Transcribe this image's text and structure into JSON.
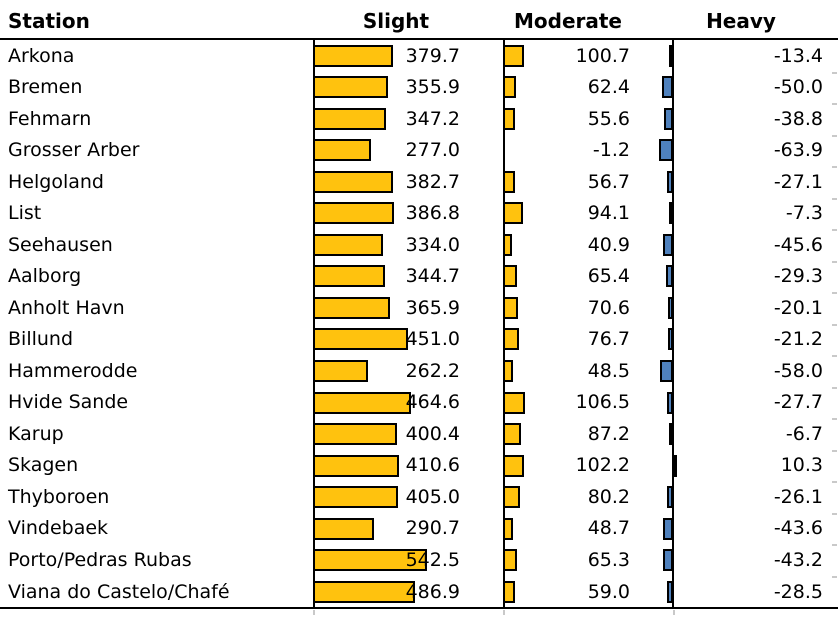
{
  "header": {
    "station": "Station",
    "slight": "Slight",
    "moderate": "Moderate",
    "heavy": "Heavy"
  },
  "colors": {
    "positive_bar": "#FFC20E",
    "negative_bar": "#4F81BD",
    "bar_border": "#000000",
    "text": "#000000",
    "rule": "#000000"
  },
  "chart_data": {
    "type": "bar",
    "layout": "table with inline horizontal bar cells; positive bars grow right from each column axis, negative bars grow left; no gridlines; no legend",
    "columns": [
      "Station",
      "Slight",
      "Moderate",
      "Heavy"
    ],
    "categories": [
      "Arkona",
      "Bremen",
      "Fehmarn",
      "Grosser Arber",
      "Helgoland",
      "List",
      "Seehausen",
      "Aalborg",
      "Anholt Havn",
      "Billund",
      "Hammerodde",
      "Hvide Sande",
      "Karup",
      "Skagen",
      "Thyboroen",
      "Vindebaek",
      "Porto/Pedras Rubas",
      "Viana do Castelo/Chafé"
    ],
    "series": [
      {
        "name": "Slight",
        "color": "#FFC20E",
        "values": [
          379.7,
          355.9,
          347.2,
          277.0,
          382.7,
          386.8,
          334.0,
          344.7,
          365.9,
          451.0,
          262.2,
          464.6,
          400.4,
          410.6,
          405.0,
          290.7,
          542.5,
          486.9
        ]
      },
      {
        "name": "Moderate",
        "color": "#FFC20E",
        "values": [
          100.7,
          62.4,
          55.6,
          -1.2,
          56.7,
          94.1,
          40.9,
          65.4,
          70.6,
          76.7,
          48.5,
          106.5,
          87.2,
          102.2,
          80.2,
          48.7,
          65.3,
          59.0
        ]
      },
      {
        "name": "Heavy",
        "color": "#4F81BD",
        "values": [
          -13.4,
          -50.0,
          -38.8,
          -63.9,
          -27.1,
          -7.3,
          -45.6,
          -29.3,
          -20.1,
          -21.2,
          -58.0,
          -27.7,
          -6.7,
          10.3,
          -26.1,
          -43.6,
          -43.2,
          -28.5
        ]
      }
    ],
    "value_format": "fixed 1 decimal",
    "grid": false,
    "legend": false,
    "title": ""
  }
}
